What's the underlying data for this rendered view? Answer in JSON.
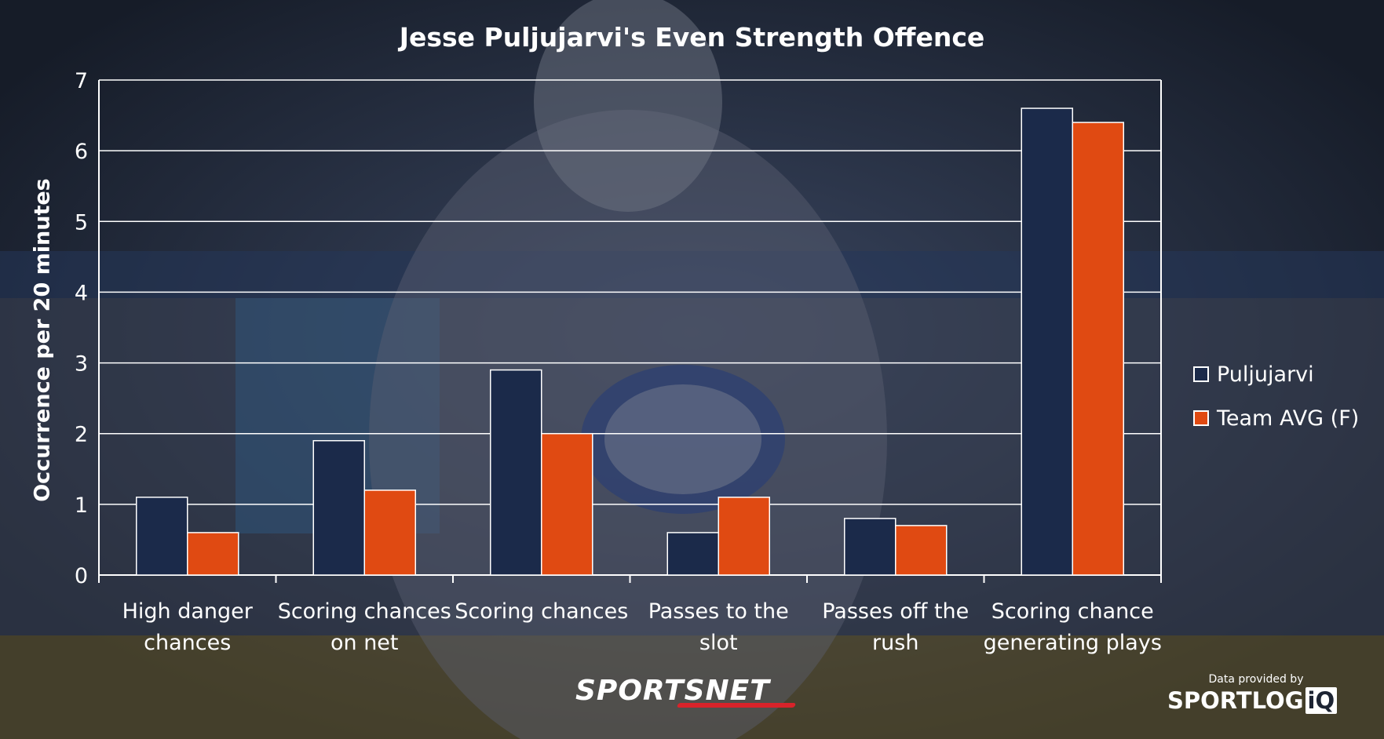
{
  "chart_data": {
    "type": "bar",
    "title": "Jesse Puljujarvi's Even Strength Offence",
    "xlabel": "",
    "ylabel": "Occurrence per 20 minutes",
    "ylim": [
      0,
      7
    ],
    "yticks": [
      0,
      1,
      2,
      3,
      4,
      5,
      6,
      7
    ],
    "grid": true,
    "legend_position": "right",
    "categories": [
      [
        "High danger",
        "chances"
      ],
      [
        "Scoring chances",
        "on net"
      ],
      [
        "Scoring chances"
      ],
      [
        "Passes to the",
        "slot"
      ],
      [
        "Passes off the",
        "rush"
      ],
      [
        "Scoring chance",
        "generating plays"
      ]
    ],
    "series": [
      {
        "name": "Puljujarvi",
        "color": "#1b2a4a",
        "values": [
          1.1,
          1.9,
          2.9,
          0.6,
          0.8,
          6.6
        ]
      },
      {
        "name": "Team AVG (F)",
        "color": "#e04a12",
        "values": [
          0.6,
          1.2,
          2.0,
          1.1,
          0.7,
          6.4
        ]
      }
    ]
  },
  "footer": {
    "credit": "Data provided by",
    "brand_left": "SPORTSNET",
    "brand_right_main": "SPORTLOG",
    "brand_right_iq": "iQ"
  }
}
